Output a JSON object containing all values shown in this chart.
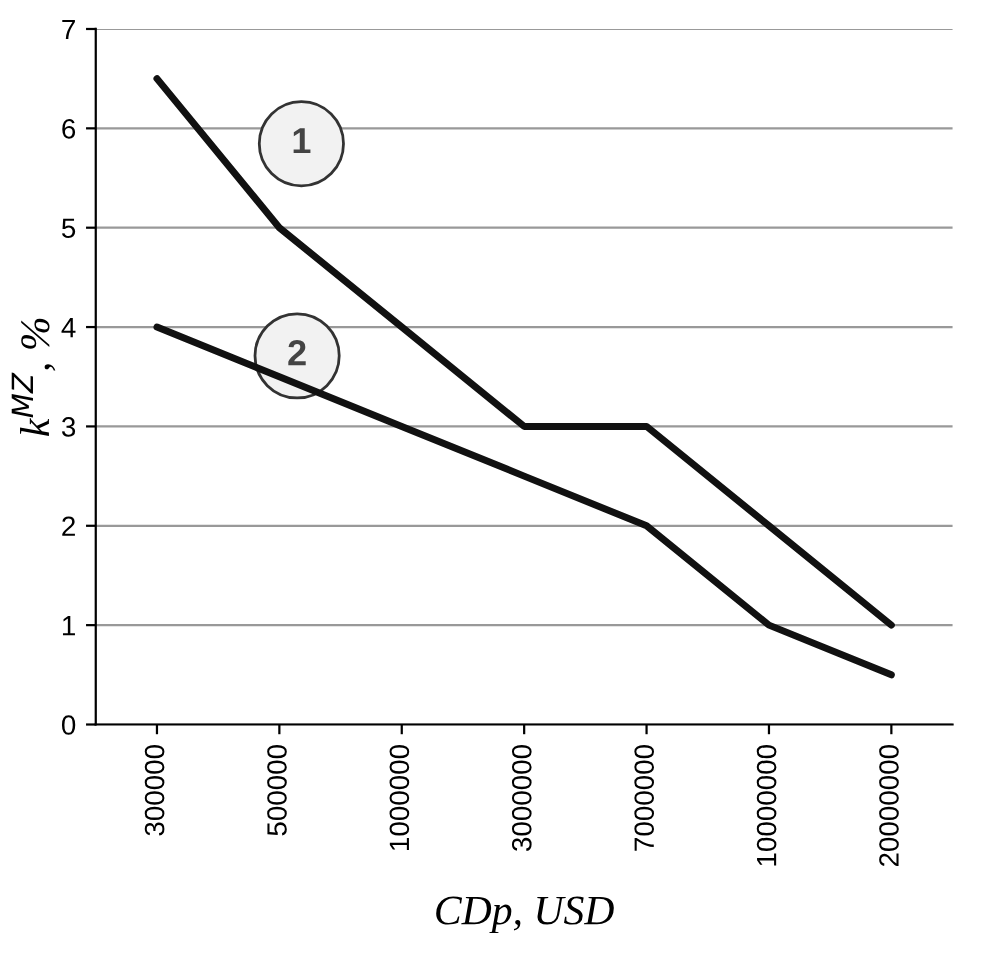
{
  "chart_data": {
    "type": "line",
    "xlabel": "CDp, USD",
    "ylabel": "k$^{MZ}$, %",
    "categories": [
      "300000",
      "500000",
      "1000000",
      "3000000",
      "7000000",
      "10000000",
      "20000000"
    ],
    "series": [
      {
        "color": "#111111",
        "values": [
          6.5,
          5.0,
          4.0,
          3.0,
          3.0,
          2.0,
          1.0
        ]
      },
      {
        "color": "#111111",
        "values": [
          4.0,
          3.5,
          3.0,
          2.5,
          2.0,
          1.0,
          0.5
        ]
      }
    ],
    "ylim": [
      0,
      7
    ],
    "yticks": [
      0,
      1,
      2,
      3,
      4,
      5,
      6,
      7
    ],
    "grid": "y",
    "legend": false,
    "marker": "none",
    "line_style": "solid",
    "annotations": [
      "1",
      "2"
    ]
  }
}
